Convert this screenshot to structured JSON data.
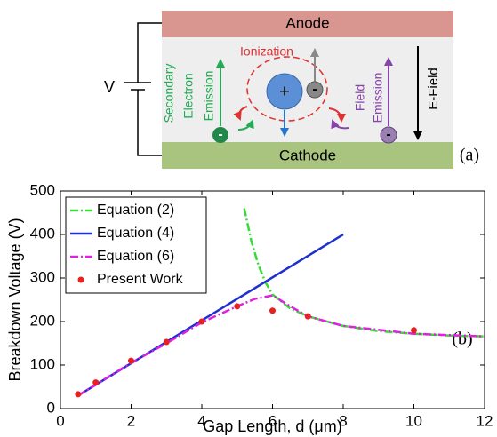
{
  "diagram": {
    "anode": "Anode",
    "cathode": "Cathode",
    "voltage": "V",
    "ionization": "Ionization",
    "secondary_emission": [
      "Secondary",
      "Electron",
      "Emission"
    ],
    "field_emission": [
      "Field",
      "Emission"
    ],
    "efield": "E-Field",
    "ion_sign": "+",
    "electron_sign": "-",
    "panel_label": "(a)"
  },
  "chart_data": {
    "type": "line",
    "panel_label": "(b)",
    "xlabel": "Gap Length, d (μm)",
    "ylabel": "Breakdown Voltage (V)",
    "xlim": [
      0,
      12
    ],
    "ylim": [
      0,
      500
    ],
    "xticks": [
      0,
      2,
      4,
      6,
      8,
      10,
      12
    ],
    "yticks": [
      0,
      100,
      200,
      300,
      400,
      500
    ],
    "grid": false,
    "legend": "upper left",
    "series": [
      {
        "name": "Equation (2)",
        "color": "#33dd33",
        "linestyle": "dashdot",
        "x": [
          5.2,
          5.4,
          5.6,
          5.8,
          6,
          6.5,
          7,
          8,
          9,
          10,
          11,
          12
        ],
        "values": [
          460,
          385,
          330,
          290,
          262,
          230,
          212,
          190,
          178,
          172,
          168,
          166
        ]
      },
      {
        "name": "Equation (4)",
        "color": "#1f2fd0",
        "linestyle": "solid",
        "x": [
          0.5,
          8
        ],
        "values": [
          30,
          400
        ]
      },
      {
        "name": "Equation (6)",
        "color": "#e020e0",
        "linestyle": "dashdot",
        "x": [
          0.5,
          1,
          2,
          3,
          4,
          5,
          5.5,
          6,
          6.5,
          7,
          8,
          10,
          12
        ],
        "values": [
          30,
          55,
          105,
          150,
          198,
          235,
          252,
          260,
          235,
          212,
          190,
          172,
          166
        ]
      },
      {
        "name": "Present Work",
        "color": "#e82020",
        "linestyle": "marker",
        "x": [
          0.5,
          1,
          2,
          3,
          4,
          5,
          6,
          7,
          10
        ],
        "values": [
          33,
          60,
          110,
          153,
          200,
          235,
          225,
          212,
          180
        ]
      }
    ]
  }
}
